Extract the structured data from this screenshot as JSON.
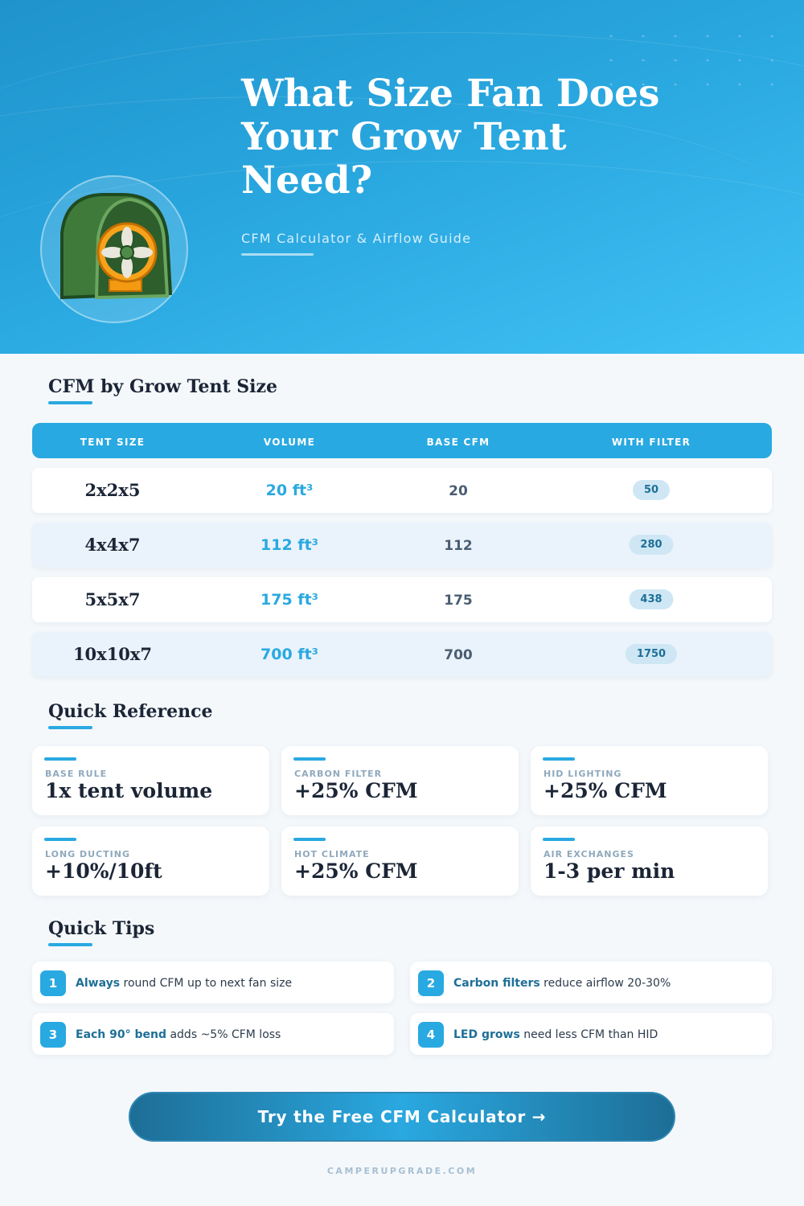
{
  "hero": {
    "title": "What Size Fan Does Your Grow Tent Need?",
    "subtitle": "CFM Calculator & Airflow Guide",
    "logo_icon": "grow-tent-fan-icon"
  },
  "table_section": {
    "title": "CFM by Grow Tent Size",
    "headers": [
      "TENT SIZE",
      "VOLUME",
      "BASE CFM",
      "WITH FILTER"
    ],
    "rows": [
      {
        "size": "2x2x5",
        "volume": "20 ft³",
        "base": "20",
        "filter": "50"
      },
      {
        "size": "4x4x7",
        "volume": "112 ft³",
        "base": "112",
        "filter": "280"
      },
      {
        "size": "5x5x7",
        "volume": "175 ft³",
        "base": "175",
        "filter": "438"
      },
      {
        "size": "10x10x7",
        "volume": "700 ft³",
        "base": "700",
        "filter": "1750"
      }
    ]
  },
  "reference": {
    "title": "Quick Reference",
    "cards": [
      {
        "label": "BASE RULE",
        "value": "1x tent volume"
      },
      {
        "label": "CARBON FILTER",
        "value": "+25% CFM"
      },
      {
        "label": "HID LIGHTING",
        "value": "+25% CFM"
      },
      {
        "label": "LONG DUCTING",
        "value": "+10%/10ft"
      },
      {
        "label": "HOT CLIMATE",
        "value": "+25% CFM"
      },
      {
        "label": "AIR EXCHANGES",
        "value": "1-3 per min"
      }
    ]
  },
  "tips": {
    "title": "Quick Tips",
    "items": [
      {
        "num": "1",
        "highlight": "Always",
        "text": " round CFM up to next fan size"
      },
      {
        "num": "2",
        "highlight": "Carbon filters",
        "text": " reduce airflow 20-30%"
      },
      {
        "num": "3",
        "highlight": "Each 90° bend",
        "text": " adds ~5% CFM loss"
      },
      {
        "num": "4",
        "highlight": "LED grows",
        "text": " need less CFM than HID"
      }
    ]
  },
  "cta": {
    "label": "Try the Free CFM Calculator →"
  },
  "footer": {
    "site": "CAMPERUPGRADE.COM"
  },
  "colors": {
    "accent": "#29a9e1",
    "dark_text": "#1b2536",
    "highlight": "#1e6f97"
  }
}
